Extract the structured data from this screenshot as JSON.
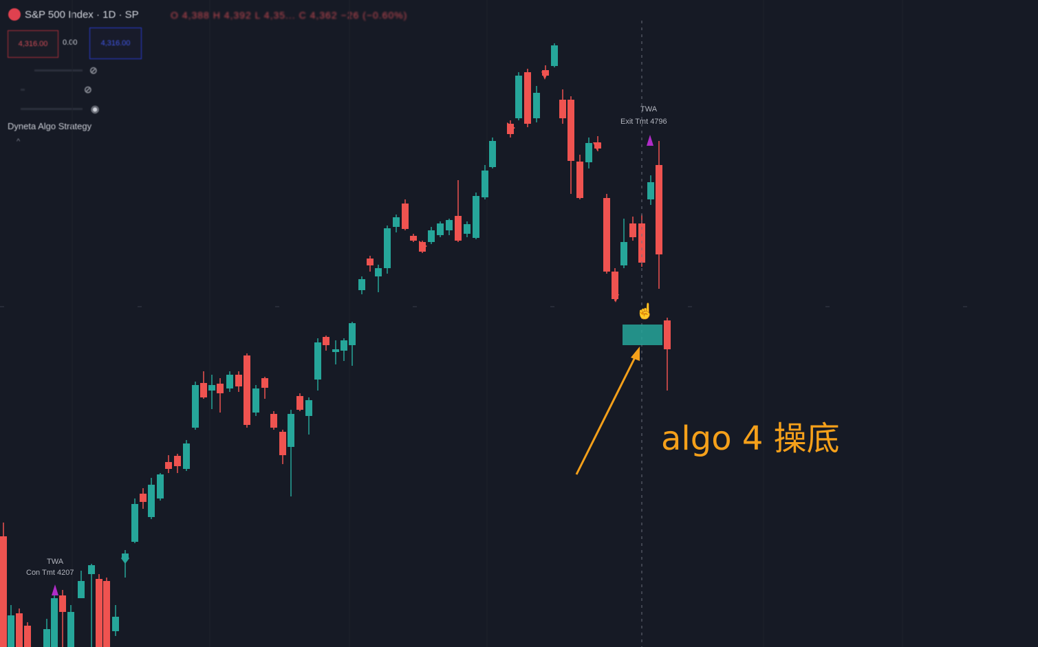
{
  "header": {
    "symbol_title": "S&P 500 Index · 1D · SP",
    "ohlc_text": "O 4,388 H 4,392 L 4,35... C 4,362 −26 (−0.60%)"
  },
  "trade_panel": {
    "sell_label": "4,316.00",
    "spread_label": "0.00",
    "buy_label": "4,316.00"
  },
  "indicators": [
    {
      "name": "indicator-row-1",
      "icon": "eye-slash-icon"
    },
    {
      "name": "indicator-row-2",
      "icon": "eye-slash-icon"
    },
    {
      "name": "indicator-row-3",
      "icon": "eye-icon"
    }
  ],
  "strategy_name": "Dyneta Algo Strategy",
  "chart_data": {
    "type": "candlestick",
    "symbol": "S&P 500 Index",
    "interval": "1D",
    "colors": {
      "up": "#26a69a",
      "down": "#ef5350",
      "background": "#161a25",
      "signal": "#b02cc8",
      "label": "#b2b5be"
    },
    "signals": [
      {
        "text_top": "TWA",
        "text_bottom": "Con Tmt 4207",
        "side": "buy"
      },
      {
        "text_top": "TWA",
        "text_bottom": "Exit Tmt 4796",
        "side": "sell"
      }
    ]
  },
  "annotation": {
    "text": "algo 4 操底",
    "color": "#f5a01a"
  }
}
